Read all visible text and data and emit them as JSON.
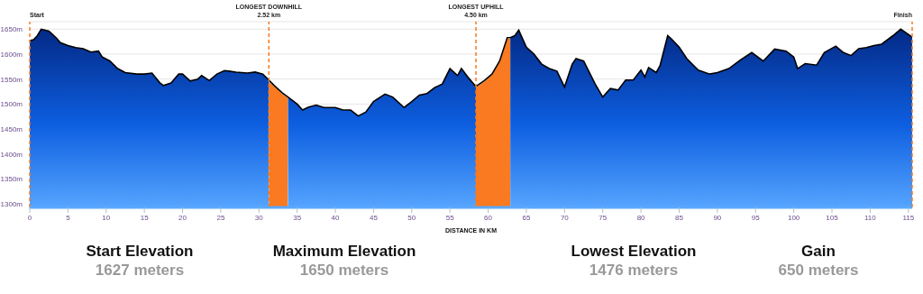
{
  "chart_data": {
    "type": "area",
    "xlabel": "DISTANCE IN KM",
    "x": [
      0,
      0.5,
      1,
      1.5,
      2.5,
      3.5,
      4,
      5,
      6,
      7,
      8,
      9,
      9.5,
      10.5,
      11.5,
      12.5,
      14,
      15,
      16,
      17,
      17.5,
      18.5,
      19.5,
      20,
      21,
      22,
      22.5,
      23.5,
      24.5,
      25.5,
      27,
      28.5,
      29.5,
      30.5,
      31.3,
      32,
      33,
      33.8,
      35,
      35.7,
      36.5,
      37.5,
      38.5,
      40,
      41,
      42,
      43,
      44,
      45,
      46.5,
      47.5,
      49,
      50,
      51,
      52,
      53,
      54,
      55,
      56,
      56.5,
      57.5,
      58.4,
      59.5,
      60.5,
      61.5,
      62.5,
      62.9,
      63.5,
      64,
      65,
      66,
      67,
      68,
      69,
      70,
      71,
      71.5,
      72.5,
      74,
      75,
      76,
      77,
      78,
      79,
      80,
      80.5,
      81,
      82,
      82.5,
      83.5,
      84,
      85,
      86,
      87.5,
      89,
      90,
      91.5,
      93,
      94.5,
      96,
      97.5,
      99,
      100,
      100.5,
      101.5,
      103,
      104,
      105.5,
      106.5,
      107.5,
      108.5,
      109.5,
      110.5,
      111.5,
      113,
      114,
      115.5
    ],
    "series": [
      {
        "color": "#0d5ee0",
        "values": [
          1627,
          1629,
          1637,
          1650,
          1646,
          1632,
          1623,
          1617,
          1613,
          1611,
          1604,
          1606,
          1594,
          1586,
          1571,
          1563,
          1560,
          1560,
          1562,
          1543,
          1537,
          1542,
          1560,
          1560,
          1546,
          1550,
          1557,
          1547,
          1560,
          1567,
          1564,
          1562,
          1564,
          1560,
          1548,
          1537,
          1523,
          1514,
          1500,
          1488,
          1494,
          1498,
          1493,
          1493,
          1488,
          1488,
          1476,
          1484,
          1505,
          1520,
          1514,
          1493,
          1505,
          1518,
          1521,
          1533,
          1540,
          1571,
          1557,
          1571,
          1551,
          1535,
          1547,
          1560,
          1586,
          1633,
          1633,
          1637,
          1648,
          1614,
          1600,
          1580,
          1571,
          1566,
          1534,
          1580,
          1591,
          1586,
          1540,
          1514,
          1531,
          1528,
          1548,
          1548,
          1568,
          1554,
          1573,
          1563,
          1577,
          1637,
          1630,
          1614,
          1591,
          1568,
          1560,
          1563,
          1571,
          1588,
          1603,
          1586,
          1610,
          1606,
          1594,
          1571,
          1581,
          1578,
          1603,
          1616,
          1603,
          1597,
          1611,
          1613,
          1617,
          1620,
          1637,
          1650,
          1634
        ]
      }
    ],
    "xlim": [
      0,
      115.5
    ],
    "xticks": [
      0,
      5,
      10,
      15,
      20,
      25,
      30,
      35,
      40,
      45,
      50,
      55,
      60,
      65,
      70,
      75,
      80,
      85,
      90,
      95,
      100,
      105,
      110,
      115
    ],
    "ylim": [
      1293,
      1665
    ],
    "yticks": [
      {
        "value": 1300,
        "label": "1300m"
      },
      {
        "value": 1350,
        "label": "1350m"
      },
      {
        "value": 1400,
        "label": "1400m"
      },
      {
        "value": 1450,
        "label": "1450m"
      },
      {
        "value": 1500,
        "label": "1500m"
      },
      {
        "value": 1550,
        "label": "1550m"
      },
      {
        "value": 1600,
        "label": "1600m"
      },
      {
        "value": 1650,
        "label": "1650m"
      }
    ],
    "grid": "y",
    "ref_lines": [
      {
        "axis": "x",
        "value": 0,
        "label": "Start",
        "color": "#f97a20",
        "line_style": "dashed"
      },
      {
        "axis": "x",
        "value": 31.3,
        "label": "LONGEST DOWNHILL\n2.52 km",
        "color": "#f97a20",
        "line_style": "dashed"
      },
      {
        "axis": "x",
        "value": 58.4,
        "label": "LONGEST UPHILL\n4.50 km",
        "color": "#f97a20",
        "line_style": "dashed"
      },
      {
        "axis": "x",
        "value": 115.5,
        "label": "Finish",
        "color": "#f97a20",
        "line_style": "dashed"
      }
    ],
    "bands": [
      {
        "axis": "x",
        "from": 31.3,
        "to": 33.8,
        "color": "#f97a20"
      },
      {
        "axis": "x",
        "from": 58.4,
        "to": 62.9,
        "color": "#f97a20"
      }
    ],
    "annotations": [
      "Start Elevation",
      "1627 meters",
      "Maximum Elevation",
      "1650 meters",
      "Lowest Elevation",
      "1476 meters",
      "Gain",
      "650 meters"
    ]
  }
}
